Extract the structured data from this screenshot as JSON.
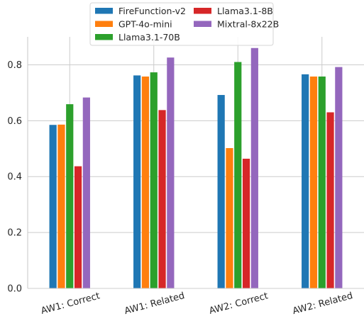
{
  "chart_data": {
    "type": "bar",
    "title": "",
    "xlabel": "",
    "ylabel": "",
    "categories": [
      "AW1: Correct",
      "AW1: Related",
      "AW2: Correct",
      "AW2: Related"
    ],
    "series": [
      {
        "name": "FireFunction-v2",
        "color": "#1f77b4",
        "values": [
          0.585,
          0.762,
          0.692,
          0.766
        ]
      },
      {
        "name": "GPT-4o-mini",
        "color": "#ff7f0e",
        "values": [
          0.586,
          0.758,
          0.502,
          0.758
        ]
      },
      {
        "name": "Llama3.1-70B",
        "color": "#2ca02c",
        "values": [
          0.659,
          0.773,
          0.81,
          0.758
        ]
      },
      {
        "name": "Llama3.1-8B",
        "color": "#d62728",
        "values": [
          0.437,
          0.638,
          0.464,
          0.63
        ]
      },
      {
        "name": "Mixtral-8x22B",
        "color": "#9467bd",
        "values": [
          0.683,
          0.826,
          0.86,
          0.792
        ]
      }
    ],
    "ylim": [
      0,
      0.9
    ],
    "yticks": [
      0.0,
      0.2,
      0.4,
      0.6,
      0.8
    ],
    "ytick_labels": [
      "0.0",
      "0.2",
      "0.4",
      "0.6",
      "0.8"
    ],
    "grid": true,
    "legend_position": "top-center",
    "legend_columns": 2
  }
}
